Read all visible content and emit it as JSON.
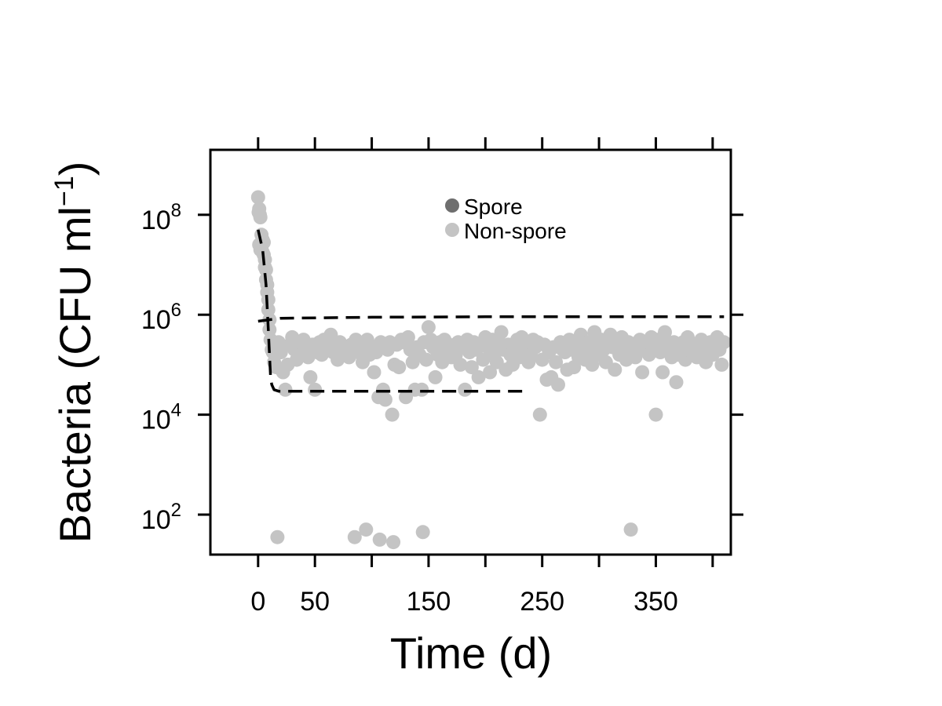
{
  "chart_data": {
    "type": "scatter",
    "xlabel": "Time (d)",
    "ylabel_main": "Bacteria (CFU ml",
    "ylabel_sup": "−1",
    "ylabel_close": ")",
    "x_ticks": [
      0,
      50,
      100,
      150,
      200,
      250,
      300,
      350,
      400
    ],
    "x_tick_labels": [
      {
        "x": 0,
        "label": "0"
      },
      {
        "x": 50,
        "label": "50"
      },
      {
        "x": 150,
        "label": "150"
      },
      {
        "x": 250,
        "label": "250"
      },
      {
        "x": 350,
        "label": "350"
      }
    ],
    "y_scale": "log10",
    "y_ticks": [
      {
        "exp": 8,
        "base": "10",
        "sup": "8"
      },
      {
        "exp": 6,
        "base": "10",
        "sup": "6"
      },
      {
        "exp": 4,
        "base": "10",
        "sup": "4"
      },
      {
        "exp": 2,
        "base": "10",
        "sup": "2"
      }
    ],
    "xlim": [
      -42,
      416
    ],
    "ylim_log10": [
      1.2,
      9.3
    ],
    "legend": {
      "position": "top-center",
      "entries": [
        {
          "label": "Spore",
          "color": "#6e6e6e"
        },
        {
          "label": "Non-spore",
          "color": "#c4c4c4"
        }
      ]
    },
    "series": [
      {
        "name": "Non-spore",
        "color": "#c4c4c4",
        "points": [
          [
            0,
            8.35
          ],
          [
            0.5,
            8.05
          ],
          [
            1,
            8.12
          ],
          [
            1.5,
            8.0
          ],
          [
            2,
            7.95
          ],
          [
            1,
            7.4
          ],
          [
            2,
            7.3
          ],
          [
            3,
            7.35
          ],
          [
            4,
            7.25
          ],
          [
            3,
            7.6
          ],
          [
            4,
            7.5
          ],
          [
            5,
            7.45
          ],
          [
            5,
            7.2
          ],
          [
            6,
            7.1
          ],
          [
            6,
            6.95
          ],
          [
            7,
            6.9
          ],
          [
            7,
            6.7
          ],
          [
            8,
            6.6
          ],
          [
            8,
            6.45
          ],
          [
            9,
            6.3
          ],
          [
            9,
            6.1
          ],
          [
            10,
            5.9
          ],
          [
            10,
            5.7
          ],
          [
            11,
            5.5
          ],
          [
            12,
            5.3
          ],
          [
            13,
            5.25
          ],
          [
            14,
            5.05
          ],
          [
            16,
            4.95
          ],
          [
            18,
            5.45
          ],
          [
            20,
            5.25
          ],
          [
            22,
            4.85
          ],
          [
            24,
            4.5
          ],
          [
            26,
            5.0
          ],
          [
            28,
            5.4
          ],
          [
            30,
            5.55
          ],
          [
            32,
            5.3
          ],
          [
            34,
            5.1
          ],
          [
            36,
            5.4
          ],
          [
            38,
            5.2
          ],
          [
            40,
            5.5
          ],
          [
            42,
            5.35
          ],
          [
            44,
            5.15
          ],
          [
            46,
            4.75
          ],
          [
            48,
            5.4
          ],
          [
            50,
            4.5
          ],
          [
            52,
            5.25
          ],
          [
            54,
            5.45
          ],
          [
            56,
            5.2
          ],
          [
            58,
            5.5
          ],
          [
            60,
            5.35
          ],
          [
            62,
            5.3
          ],
          [
            64,
            5.6
          ],
          [
            66,
            5.25
          ],
          [
            68,
            5.4
          ],
          [
            70,
            5.1
          ],
          [
            72,
            5.45
          ],
          [
            74,
            5.3
          ],
          [
            76,
            5.2
          ],
          [
            78,
            5.35
          ],
          [
            80,
            5.15
          ],
          [
            82,
            5.4
          ],
          [
            84,
            5.3
          ],
          [
            86,
            5.5
          ],
          [
            88,
            5.25
          ],
          [
            90,
            5.4
          ],
          [
            92,
            5.05
          ],
          [
            94,
            5.35
          ],
          [
            96,
            5.5
          ],
          [
            98,
            5.2
          ],
          [
            100,
            5.35
          ],
          [
            102,
            4.85
          ],
          [
            104,
            5.25
          ],
          [
            106,
            4.35
          ],
          [
            108,
            5.45
          ],
          [
            110,
            4.5
          ],
          [
            112,
            4.3
          ],
          [
            114,
            5.3
          ],
          [
            116,
            5.45
          ],
          [
            118,
            4.0
          ],
          [
            120,
            5.0
          ],
          [
            122,
            5.4
          ],
          [
            124,
            4.95
          ],
          [
            126,
            5.5
          ],
          [
            128,
            5.45
          ],
          [
            130,
            4.35
          ],
          [
            132,
            5.55
          ],
          [
            134,
            5.3
          ],
          [
            136,
            5.05
          ],
          [
            138,
            4.5
          ],
          [
            140,
            5.35
          ],
          [
            142,
            5.2
          ],
          [
            144,
            4.5
          ],
          [
            146,
            5.45
          ],
          [
            148,
            5.1
          ],
          [
            150,
            5.75
          ],
          [
            152,
            5.5
          ],
          [
            154,
            5.35
          ],
          [
            156,
            4.75
          ],
          [
            158,
            5.2
          ],
          [
            160,
            5.45
          ],
          [
            162,
            5.05
          ],
          [
            164,
            5.5
          ],
          [
            166,
            5.25
          ],
          [
            168,
            5.4
          ],
          [
            170,
            5.15
          ],
          [
            172,
            5.35
          ],
          [
            174,
            5.2
          ],
          [
            176,
            5.45
          ],
          [
            178,
            5.0
          ],
          [
            180,
            5.35
          ],
          [
            182,
            4.5
          ],
          [
            184,
            5.5
          ],
          [
            186,
            5.25
          ],
          [
            188,
            4.95
          ],
          [
            190,
            5.45
          ],
          [
            192,
            5.3
          ],
          [
            194,
            4.75
          ],
          [
            196,
            5.4
          ],
          [
            198,
            5.1
          ],
          [
            200,
            5.55
          ],
          [
            202,
            5.35
          ],
          [
            204,
            4.85
          ],
          [
            206,
            5.5
          ],
          [
            208,
            5.2
          ],
          [
            210,
            5.05
          ],
          [
            212,
            5.45
          ],
          [
            214,
            5.65
          ],
          [
            216,
            5.3
          ],
          [
            218,
            4.9
          ],
          [
            220,
            5.4
          ],
          [
            222,
            5.2
          ],
          [
            224,
            5.0
          ],
          [
            226,
            5.35
          ],
          [
            228,
            5.5
          ],
          [
            230,
            5.15
          ],
          [
            232,
            5.55
          ],
          [
            234,
            5.45
          ],
          [
            236,
            5.3
          ],
          [
            238,
            5.05
          ],
          [
            240,
            5.2
          ],
          [
            242,
            5.5
          ],
          [
            244,
            5.35
          ],
          [
            246,
            5.45
          ],
          [
            248,
            4.0
          ],
          [
            250,
            5.1
          ],
          [
            252,
            5.4
          ],
          [
            254,
            4.7
          ],
          [
            256,
            5.25
          ],
          [
            258,
            4.75
          ],
          [
            260,
            5.35
          ],
          [
            262,
            5.05
          ],
          [
            264,
            4.6
          ],
          [
            266,
            5.45
          ],
          [
            268,
            5.3
          ],
          [
            270,
            5.25
          ],
          [
            272,
            4.9
          ],
          [
            274,
            5.5
          ],
          [
            276,
            5.3
          ],
          [
            278,
            4.95
          ],
          [
            280,
            5.4
          ],
          [
            282,
            5.15
          ],
          [
            284,
            5.6
          ],
          [
            286,
            5.35
          ],
          [
            288,
            5.1
          ],
          [
            290,
            5.45
          ],
          [
            292,
            5.25
          ],
          [
            294,
            5.0
          ],
          [
            296,
            5.65
          ],
          [
            298,
            5.4
          ],
          [
            300,
            5.2
          ],
          [
            302,
            5.5
          ],
          [
            304,
            5.3
          ],
          [
            306,
            5.05
          ],
          [
            308,
            5.45
          ],
          [
            310,
            5.6
          ],
          [
            312,
            5.35
          ],
          [
            314,
            4.9
          ],
          [
            316,
            5.45
          ],
          [
            318,
            5.2
          ],
          [
            320,
            5.55
          ],
          [
            322,
            5.3
          ],
          [
            324,
            5.1
          ],
          [
            326,
            5.45
          ],
          [
            328,
            5.25
          ],
          [
            330,
            5.4
          ],
          [
            332,
            5.15
          ],
          [
            334,
            5.35
          ],
          [
            336,
            5.5
          ],
          [
            338,
            4.85
          ],
          [
            340,
            5.3
          ],
          [
            342,
            5.45
          ],
          [
            344,
            5.2
          ],
          [
            346,
            5.55
          ],
          [
            348,
            5.35
          ],
          [
            350,
            4.0
          ],
          [
            352,
            5.5
          ],
          [
            354,
            5.25
          ],
          [
            356,
            4.85
          ],
          [
            358,
            5.65
          ],
          [
            360,
            5.4
          ],
          [
            362,
            5.3
          ],
          [
            364,
            5.15
          ],
          [
            366,
            5.45
          ],
          [
            368,
            4.65
          ],
          [
            370,
            5.2
          ],
          [
            372,
            5.35
          ],
          [
            374,
            5.45
          ],
          [
            376,
            5.1
          ],
          [
            378,
            5.55
          ],
          [
            380,
            5.3
          ],
          [
            382,
            5.25
          ],
          [
            384,
            5.4
          ],
          [
            386,
            5.15
          ],
          [
            388,
            5.35
          ],
          [
            390,
            5.5
          ],
          [
            392,
            5.25
          ],
          [
            394,
            5.05
          ],
          [
            396,
            5.35
          ],
          [
            398,
            5.45
          ],
          [
            400,
            5.2
          ],
          [
            402,
            5.4
          ],
          [
            404,
            5.55
          ],
          [
            406,
            5.3
          ],
          [
            408,
            5.0
          ],
          [
            410,
            5.45
          ],
          [
            17,
            1.55
          ],
          [
            85,
            1.55
          ],
          [
            95,
            1.7
          ],
          [
            107,
            1.5
          ],
          [
            119,
            1.45
          ],
          [
            145,
            1.65
          ],
          [
            328,
            1.7
          ]
        ]
      }
    ],
    "fit_lines": [
      {
        "name": "decay",
        "style": "dashed",
        "color": "#000000",
        "points": [
          [
            0,
            7.7
          ],
          [
            4,
            7.3
          ],
          [
            7,
            6.6
          ],
          [
            9,
            5.7
          ],
          [
            10,
            5.2
          ],
          [
            11,
            4.75
          ],
          [
            12,
            4.6
          ],
          [
            14,
            4.5
          ],
          [
            18,
            4.47
          ],
          [
            25,
            4.47
          ],
          [
            235,
            4.47
          ]
        ]
      },
      {
        "name": "plateau",
        "style": "dashed",
        "color": "#000000",
        "points": [
          [
            0,
            5.87
          ],
          [
            20,
            5.93
          ],
          [
            100,
            5.95
          ],
          [
            200,
            5.96
          ],
          [
            300,
            5.96
          ],
          [
            410,
            5.96
          ]
        ]
      }
    ]
  }
}
